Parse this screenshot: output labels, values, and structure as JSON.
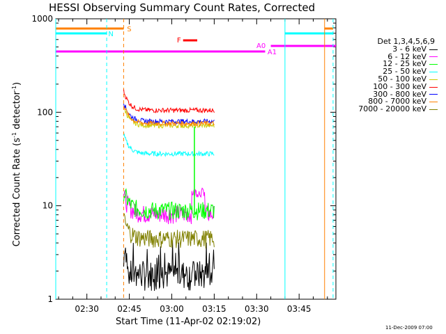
{
  "title": "HESSI Observing Summary Count Rates, Corrected",
  "ylabel_main": "Corrected Count Rate (s",
  "ylabel_sup1": "-1",
  "ylabel_mid": " detector",
  "ylabel_sup2": "-1",
  "ylabel_end": ")",
  "xlabel": "Start Time (11-Apr-02 02:19:02)",
  "timestamp": "11-Dec-2009 07:00",
  "legend_header": "Det 1,3,4,5,6,9",
  "chart_data": {
    "type": "line",
    "y_scale": "log",
    "ylim": [
      1,
      1000
    ],
    "xlim": [
      "02:19",
      "03:58"
    ],
    "y_ticks": [
      "1",
      "10",
      "100",
      "1000"
    ],
    "x_ticks": [
      "02:30",
      "02:45",
      "03:00",
      "03:15",
      "03:30",
      "03:45"
    ],
    "series": [
      {
        "name": "3 - 6 keV",
        "color": "#000000",
        "start": "02:43",
        "end": "03:15",
        "level": 1.8
      },
      {
        "name": "6 - 12 keV",
        "color": "#ff00ff",
        "start": "02:43",
        "end": "03:15",
        "level": 8.2
      },
      {
        "name": "12 - 25 keV",
        "color": "#00ff00",
        "start": "02:43",
        "end": "03:15",
        "level": 9
      },
      {
        "name": "25 - 50 keV",
        "color": "#00ffff",
        "start": "02:43",
        "end": "03:15",
        "level": 36
      },
      {
        "name": "50 - 100 keV",
        "color": "#cccc00",
        "start": "02:43",
        "end": "03:15",
        "level": 72
      },
      {
        "name": "100 - 300 keV",
        "color": "#ff0000",
        "start": "02:43",
        "end": "03:15",
        "level": 105
      },
      {
        "name": "300 - 800 keV",
        "color": "#0000ff",
        "start": "02:43",
        "end": "03:15",
        "level": 80
      },
      {
        "name": "800 - 7000 keV",
        "color": "#ff8000",
        "start": "02:43",
        "end": "03:15",
        "level": 76
      },
      {
        "name": "7000 - 20000 keV",
        "color": "#808000",
        "start": "02:43",
        "end": "03:15",
        "level": 4.5
      }
    ],
    "flags": [
      {
        "label": "S",
        "color": "#ff8000"
      },
      {
        "label": "N",
        "color": "#00ffff"
      },
      {
        "label": "F",
        "color": "#ff0000"
      },
      {
        "label": "A0",
        "color": "#ff00ff"
      },
      {
        "label": "A1",
        "color": "#ff00ff"
      }
    ]
  }
}
